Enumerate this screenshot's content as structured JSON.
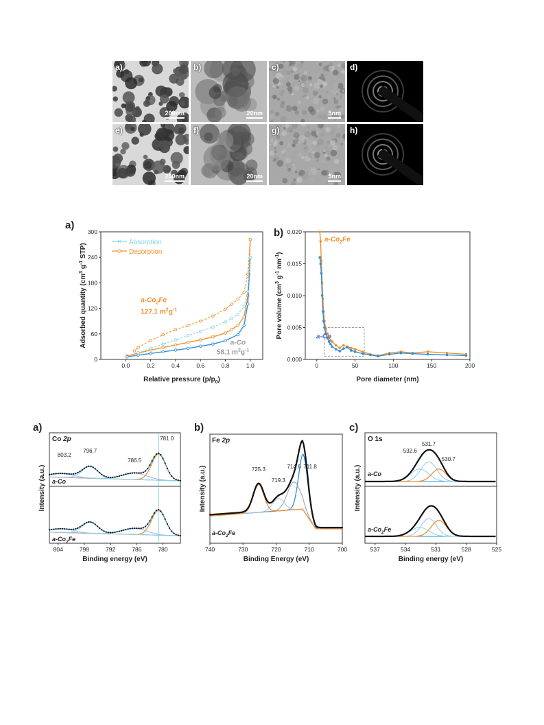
{
  "tem": {
    "panels": [
      {
        "label": "a)",
        "scale": "200nm",
        "kind": "particles"
      },
      {
        "label": "b)",
        "scale": "20nm",
        "kind": "zoom"
      },
      {
        "label": "c)",
        "scale": "5nm",
        "kind": "lattice"
      },
      {
        "label": "d)",
        "scale": "",
        "kind": "diffraction"
      },
      {
        "label": "e)",
        "scale": "200nm",
        "kind": "particles"
      },
      {
        "label": "f)",
        "scale": "20nm",
        "kind": "zoom"
      },
      {
        "label": "g)",
        "scale": "5nm",
        "kind": "lattice"
      },
      {
        "label": "h)",
        "scale": "",
        "kind": "diffraction"
      }
    ]
  },
  "colors": {
    "co2fe": "#f28e2b",
    "co": "#2f8fd8",
    "gray": "#9a9a9a",
    "black": "#111111",
    "blueLabel": "#4f6fd0",
    "teal": "#7fd6e6",
    "sky": "#9ec9f2",
    "violet": "#a7a7e8"
  },
  "chart_data": [
    {
      "id": "bet",
      "panel": "a)",
      "type": "line",
      "xlabel": "Relative pressure (p/p",
      "xlabel_sub": "0",
      "xlabel_end": ")",
      "ylabel": "Adsorbed quantity (cm",
      "ylabel_sup": "3",
      "ylabel_mid": " g",
      "ylabel_sup2": "-1",
      "ylabel_end": " STP)",
      "xlim": [
        -0.2,
        1.1
      ],
      "ylim": [
        0,
        300
      ],
      "xticks": [
        "0.0",
        "0.2",
        "0.4",
        "0.6",
        "0.8",
        "1.0"
      ],
      "yticks": [
        "0",
        "60",
        "120",
        "180",
        "240",
        "300"
      ],
      "legend": [
        {
          "name": "Absorption",
          "color": "#7fd6e6",
          "style": "x"
        },
        {
          "name": "Desorption",
          "color": "#f28e2b",
          "style": "o"
        }
      ],
      "annotations": [
        {
          "text": "a-Co",
          "sub": "2",
          "text2": "Fe",
          "x": 0.12,
          "y": 135,
          "color": "#f28e2b"
        },
        {
          "text": "127.1 m",
          "sup": "2",
          "text2": "g",
          "sup2": "-1",
          "x": 0.12,
          "y": 107,
          "color": "#f28e2b"
        },
        {
          "text": "a-Co",
          "x": 0.84,
          "y": 35,
          "color": "#9a9a9a"
        },
        {
          "text": "58.1 m",
          "sup": "2",
          "text2": "g",
          "sup2": "-1",
          "x": 0.84,
          "y": 12,
          "color": "#9a9a9a"
        }
      ],
      "series": [
        {
          "name": "a-Co2Fe adsorption",
          "color": "#f28e2b",
          "x": [
            0.01,
            0.1,
            0.2,
            0.3,
            0.4,
            0.5,
            0.6,
            0.7,
            0.8,
            0.85,
            0.9,
            0.95,
            0.98,
            0.99,
            1.0
          ],
          "y": [
            8,
            15,
            22,
            28,
            34,
            40,
            46,
            53,
            62,
            70,
            80,
            100,
            150,
            200,
            282
          ]
        },
        {
          "name": "a-Co2Fe desorption",
          "color": "#f28e2b",
          "x": [
            1.0,
            0.98,
            0.95,
            0.9,
            0.85,
            0.8,
            0.7,
            0.6,
            0.5,
            0.4,
            0.3,
            0.2,
            0.1,
            0.07
          ],
          "y": [
            282,
            200,
            158,
            142,
            130,
            118,
            102,
            90,
            80,
            70,
            58,
            44,
            28,
            20
          ]
        },
        {
          "name": "a-Co adsorption",
          "color": "#2f8fd8",
          "x": [
            0.01,
            0.1,
            0.2,
            0.3,
            0.4,
            0.5,
            0.6,
            0.7,
            0.8,
            0.9,
            0.95,
            0.98,
            1.0
          ],
          "y": [
            6,
            10,
            14,
            18,
            22,
            26,
            31,
            36,
            44,
            58,
            80,
            130,
            240
          ]
        },
        {
          "name": "a-Co desorption",
          "color": "#2f8fd8",
          "x": [
            1.0,
            0.98,
            0.95,
            0.9,
            0.85,
            0.8,
            0.7,
            0.6,
            0.5,
            0.4,
            0.3,
            0.2,
            0.1
          ],
          "y": [
            240,
            160,
            125,
            106,
            96,
            88,
            76,
            66,
            56,
            46,
            36,
            26,
            16
          ]
        }
      ]
    },
    {
      "id": "pore",
      "panel": "b)",
      "type": "line",
      "xlabel": "Pore diameter (nm)",
      "ylabel": "Pore volume (cm",
      "ylabel_sup": "3",
      "ylabel_mid": " g",
      "ylabel_sup2": "-1",
      "ylabel_mid2": " nm",
      "ylabel_sup3": "-1",
      "ylabel_end": ")",
      "xlim": [
        -15,
        200
      ],
      "ylim": [
        0,
        0.02
      ],
      "xticks": [
        "0",
        "50",
        "100",
        "150",
        "200"
      ],
      "yticks": [
        "0.000",
        "0.005",
        "0.010",
        "0.015",
        "0.020"
      ],
      "annotations": [
        {
          "text": "a-Co",
          "sub": "2",
          "text2": "Fe",
          "x": 10,
          "y": 0.0185,
          "color": "#f28e2b"
        },
        {
          "text": "a-Co",
          "x": -8,
          "y": 0.0033,
          "color": "#4f6fd0"
        }
      ],
      "inset_box": {
        "x0": 10,
        "x1": 62,
        "y0": 0.0005,
        "y1": 0.005
      },
      "series": [
        {
          "name": "a-Co2Fe",
          "color": "#f28e2b",
          "x": [
            4,
            5,
            6,
            7,
            8,
            9,
            10,
            12,
            14,
            16,
            18,
            20,
            25,
            30,
            35,
            40,
            45,
            50,
            60,
            70,
            80,
            95,
            110,
            125,
            145,
            170,
            195
          ],
          "y": [
            0.02,
            0.0185,
            0.0155,
            0.012,
            0.0095,
            0.0075,
            0.006,
            0.0048,
            0.004,
            0.0035,
            0.003,
            0.0028,
            0.0022,
            0.0018,
            0.0022,
            0.002,
            0.0018,
            0.0016,
            0.0012,
            0.0008,
            0.0006,
            0.001,
            0.0012,
            0.001,
            0.0012,
            0.001,
            0.0008
          ]
        },
        {
          "name": "a-Co",
          "color": "#2f8fd8",
          "x": [
            4,
            5,
            6,
            7,
            8,
            9,
            10,
            12,
            14,
            16,
            18,
            20,
            25,
            30,
            35,
            40,
            45,
            50,
            60,
            70,
            80,
            95,
            110,
            125,
            145,
            170,
            195
          ],
          "y": [
            0.016,
            0.015,
            0.0135,
            0.01,
            0.0075,
            0.006,
            0.005,
            0.004,
            0.0033,
            0.0028,
            0.0024,
            0.002,
            0.0016,
            0.0013,
            0.0017,
            0.0019,
            0.0014,
            0.0012,
            0.0009,
            0.0007,
            0.0005,
            0.0008,
            0.001,
            0.0009,
            0.0008,
            0.0007,
            0.0006
          ]
        }
      ]
    },
    {
      "id": "xps_co",
      "panel": "a)",
      "type": "line",
      "title": "Co 2p",
      "xlabel": "Binding energy (eV)",
      "ylabel": "Intensity (a.u.)",
      "xlim": [
        806,
        776
      ],
      "xticks": [
        "804",
        "798",
        "792",
        "786",
        "780"
      ],
      "reference_line": 781,
      "peak_labels": [
        "803.2",
        "796.7",
        "786.5",
        "781.0"
      ],
      "samples": [
        "a-Co",
        "a-Co2Fe"
      ]
    },
    {
      "id": "xps_fe",
      "panel": "b)",
      "type": "line",
      "title": "Fe 2p",
      "xlabel": "Binding Energy (eV)",
      "ylabel": "Intensity (a.u.)",
      "xlim": [
        740,
        700
      ],
      "xticks": [
        "740",
        "730",
        "720",
        "710",
        "700"
      ],
      "peak_labels": [
        "725.3",
        "719.3",
        "714.6",
        "711.8"
      ],
      "samples": [
        "a-Co2Fe"
      ]
    },
    {
      "id": "xps_o",
      "panel": "c)",
      "type": "line",
      "title": "O 1s",
      "xlabel": "Binding energy (eV)",
      "ylabel": "Intensity (a.u.)",
      "xlim": [
        538,
        525
      ],
      "xticks": [
        "537",
        "534",
        "531",
        "528",
        "525"
      ],
      "peak_labels": [
        "532.6",
        "531.7",
        "530.7"
      ],
      "samples": [
        "a-Co",
        "a-Co2Fe"
      ]
    }
  ]
}
